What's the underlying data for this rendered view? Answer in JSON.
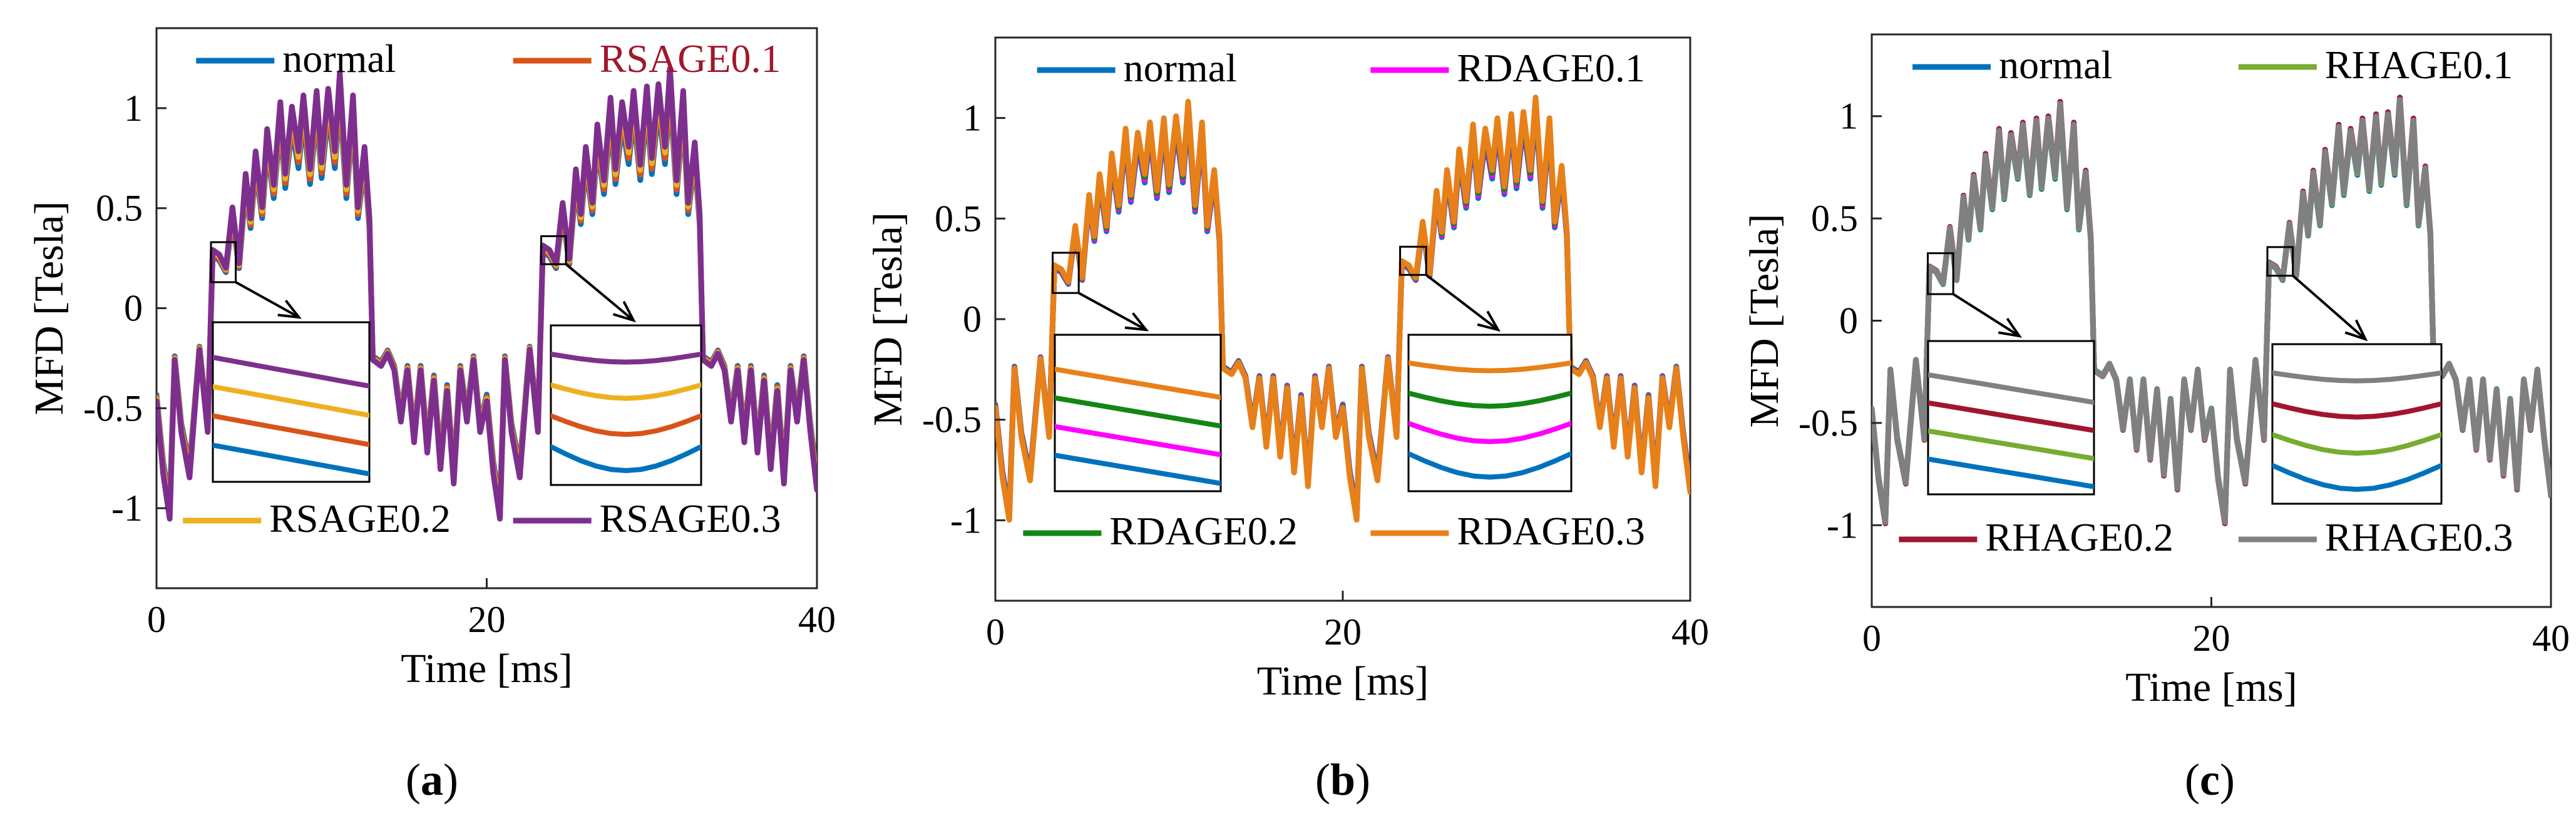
{
  "figure": {
    "panel_labels": [
      "(a)",
      "(b)",
      "(c)"
    ]
  },
  "chart_data": [
    {
      "type": "line",
      "panel": "(a)",
      "xlabel": "Time [ms]",
      "ylabel": "MFD [Tesla]",
      "xlim": [
        0,
        40
      ],
      "ylim": [
        -1.4,
        1.4
      ],
      "xticks": [
        0,
        20,
        40
      ],
      "yticks": [
        -1,
        -0.5,
        0,
        0.5,
        1
      ],
      "ytick_labels": [
        "-1",
        "-0.5",
        "0",
        "0.5",
        "1"
      ],
      "legend": [
        "normal",
        "RSAGE0.1",
        "RSAGE0.2",
        "RSAGE0.3"
      ],
      "legend_text_colors": [
        "#000000",
        "#a1172d",
        "#000000",
        "#000000"
      ],
      "series": [
        {
          "name": "normal",
          "color": "#0072bd",
          "amp": 1.0
        },
        {
          "name": "RSAGE0.1",
          "color": "#d95319",
          "amp": 1.04
        },
        {
          "name": "RSAGE0.2",
          "color": "#edb120",
          "amp": 1.08
        },
        {
          "name": "RSAGE0.3",
          "color": "#7e2f8e",
          "amp": 1.12
        }
      ],
      "zoom_insets": [
        {
          "zoom_x": [
            3.3,
            4.8
          ],
          "zoom_y": [
            0.13,
            0.33
          ]
        },
        {
          "zoom_x": [
            23.3,
            24.8
          ],
          "zoom_y": [
            0.22,
            0.36
          ]
        }
      ]
    },
    {
      "type": "line",
      "panel": "(b)",
      "xlabel": "Time [ms]",
      "ylabel": "MFD [Tesla]",
      "xlim": [
        0,
        40
      ],
      "ylim": [
        -1.4,
        1.4
      ],
      "xticks": [
        0,
        20,
        40
      ],
      "yticks": [
        -1,
        -0.5,
        0,
        0.5,
        1
      ],
      "ytick_labels": [
        "-1",
        "-0.5",
        "0",
        "0.5",
        "1"
      ],
      "legend": [
        "normal",
        "RDAGE0.1",
        "RDAGE0.2",
        "RDAGE0.3"
      ],
      "legend_text_colors": [
        "#000000",
        "#000000",
        "#000000",
        "#000000"
      ],
      "series": [
        {
          "name": "normal",
          "color": "#0072bd",
          "amp": 0.97
        },
        {
          "name": "RDAGE0.1",
          "color": "#ff00ff",
          "amp": 0.99
        },
        {
          "name": "RDAGE0.2",
          "color": "#138613",
          "amp": 1.01
        },
        {
          "name": "RDAGE0.3",
          "color": "#e8801a",
          "amp": 1.03
        }
      ],
      "zoom_insets": [
        {
          "zoom_x": [
            3.3,
            4.8
          ],
          "zoom_y": [
            0.13,
            0.33
          ]
        },
        {
          "zoom_x": [
            23.3,
            24.8
          ],
          "zoom_y": [
            0.22,
            0.36
          ]
        }
      ]
    },
    {
      "type": "line",
      "panel": "(c)",
      "xlabel": "Time [ms]",
      "ylabel": "MFD [Tesla]",
      "xlim": [
        0,
        40
      ],
      "ylim": [
        -1.4,
        1.4
      ],
      "xticks": [
        0,
        20,
        40
      ],
      "yticks": [
        -1,
        -0.5,
        0,
        0.5,
        1
      ],
      "ytick_labels": [
        "-1",
        "-0.5",
        "0",
        "0.5",
        "1"
      ],
      "legend": [
        "normal",
        "RHAGE0.1",
        "RHAGE0.2",
        "RHAGE0.3"
      ],
      "legend_text_colors": [
        "#000000",
        "#000000",
        "#000000",
        "#000000"
      ],
      "series": [
        {
          "name": "normal",
          "color": "#0072bd",
          "amp": 0.99
        },
        {
          "name": "RHAGE0.1",
          "color": "#77ac30",
          "amp": 1.0
        },
        {
          "name": "RHAGE0.2",
          "color": "#a2142f",
          "amp": 1.02
        },
        {
          "name": "RHAGE0.3",
          "color": "#808080",
          "amp": 1.01
        }
      ],
      "zoom_insets": [
        {
          "zoom_x": [
            3.3,
            4.8
          ],
          "zoom_y": [
            0.13,
            0.33
          ]
        },
        {
          "zoom_x": [
            23.3,
            24.8
          ],
          "zoom_y": [
            0.22,
            0.36
          ]
        }
      ]
    }
  ],
  "waveform": {
    "x": [
      0,
      0.4,
      0.8,
      1.1,
      1.5,
      2.0,
      2.6,
      3.1,
      3.4,
      3.8,
      4.2,
      4.6,
      5.0,
      5.4,
      5.7,
      6.0,
      6.4,
      6.7,
      7.1,
      7.5,
      7.8,
      8.2,
      8.6,
      8.9,
      9.3,
      9.7,
      10.0,
      10.4,
      10.8,
      11.1,
      11.5,
      11.9,
      12.2,
      12.6,
      12.9,
      13.1,
      13.6,
      14.0,
      14.4,
      14.8,
      15.2,
      15.6,
      16.0,
      16.4,
      16.8,
      17.2,
      17.6,
      18.0,
      18.4,
      18.8,
      19.2,
      19.6,
      20.0,
      20.4,
      20.8,
      21.1,
      21.5,
      22.0,
      22.6,
      23.1,
      23.4,
      23.8,
      24.2,
      24.6,
      25.0,
      25.4,
      25.7,
      26.0,
      26.4,
      26.7,
      27.1,
      27.5,
      27.8,
      28.2,
      28.6,
      28.9,
      29.3,
      29.7,
      30.0,
      30.4,
      30.8,
      31.1,
      31.5,
      31.9,
      32.2,
      32.6,
      32.9,
      33.1,
      33.6,
      34.0,
      34.4,
      34.8,
      35.2,
      35.6,
      36.0,
      36.4,
      36.8,
      37.2,
      37.6,
      38.0,
      38.4,
      38.8,
      39.2,
      39.6,
      40.0
    ],
    "y": [
      -0.45,
      -0.8,
      -1.02,
      -0.25,
      -0.6,
      -0.82,
      -0.2,
      -0.6,
      0.26,
      0.24,
      0.18,
      0.45,
      0.2,
      0.6,
      0.4,
      0.7,
      0.45,
      0.8,
      0.55,
      0.92,
      0.6,
      0.9,
      0.7,
      0.95,
      0.62,
      0.97,
      0.65,
      0.98,
      0.7,
      1.05,
      0.55,
      0.95,
      0.45,
      0.72,
      0.4,
      -0.25,
      -0.28,
      -0.22,
      -0.3,
      -0.55,
      -0.3,
      -0.65,
      -0.3,
      -0.7,
      -0.35,
      -0.78,
      -0.4,
      -0.85,
      -0.3,
      -0.55,
      -0.25,
      -0.6,
      -0.45,
      -0.8,
      -1.02,
      -0.25,
      -0.6,
      -0.82,
      -0.2,
      -0.6,
      0.28,
      0.26,
      0.2,
      0.47,
      0.22,
      0.62,
      0.42,
      0.72,
      0.47,
      0.82,
      0.57,
      0.94,
      0.62,
      0.92,
      0.72,
      0.97,
      0.64,
      0.99,
      0.67,
      1.0,
      0.72,
      1.07,
      0.57,
      0.97,
      0.47,
      0.74,
      0.42,
      -0.25,
      -0.28,
      -0.22,
      -0.3,
      -0.55,
      -0.3,
      -0.65,
      -0.3,
      -0.7,
      -0.35,
      -0.78,
      -0.4,
      -0.85,
      -0.3,
      -0.55,
      -0.25,
      -0.6,
      -0.88
    ]
  }
}
